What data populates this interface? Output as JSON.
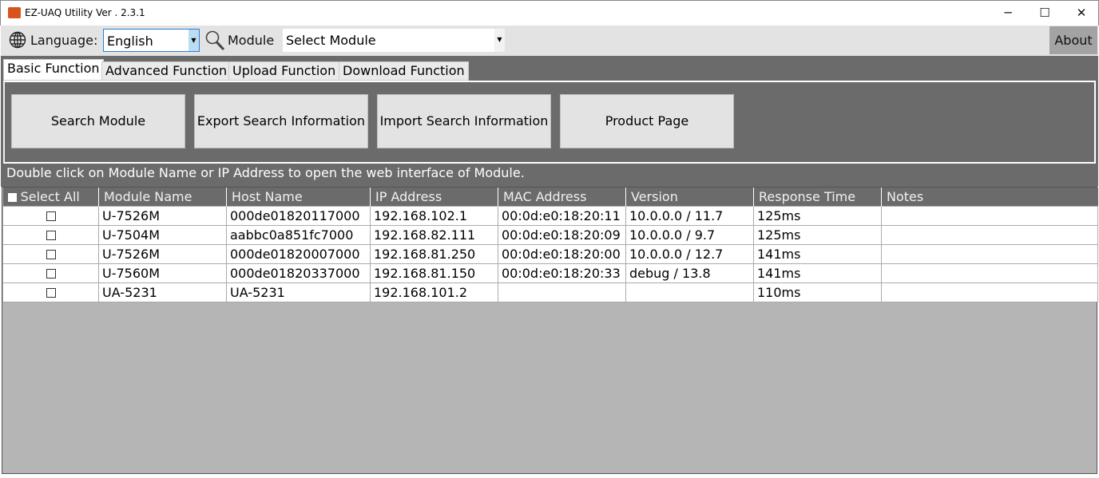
{
  "window": {
    "title": "EZ-UAQ Utility Ver . 2.3.1",
    "minimize": "─",
    "maximize": "☐",
    "close": "✕"
  },
  "toolbar": {
    "language_label": "Language:",
    "language_value": "English",
    "module_label": "Module",
    "module_value": "Select Module",
    "about": "About"
  },
  "tabs": [
    {
      "label": "Basic Function",
      "active": true
    },
    {
      "label": "Advanced Function"
    },
    {
      "label": "Upload Function"
    },
    {
      "label": "Download Function"
    }
  ],
  "buttons": [
    "Search Module",
    "Export Search Information",
    "Import Search Information",
    "Product Page"
  ],
  "hint": "Double click on Module Name or IP Address to open the web interface of Module.",
  "table": {
    "headers": [
      "Select All",
      "Module Name",
      "Host Name",
      "IP Address",
      "MAC Address",
      "Version",
      "Response Time",
      "Notes"
    ],
    "rows": [
      [
        "U-7526M",
        "000de01820117000",
        "192.168.102.1",
        "00:0d:e0:18:20:11",
        "10.0.0.0 / 11.7",
        "125ms",
        ""
      ],
      [
        "U-7504M",
        "aabbc0a851fc7000",
        "192.168.82.111",
        "00:0d:e0:18:20:09",
        "10.0.0.0 / 9.7",
        "125ms",
        ""
      ],
      [
        "U-7526M",
        "000de01820007000",
        "192.168.81.250",
        "00:0d:e0:18:20:00",
        "10.0.0.0 / 12.7",
        "141ms",
        ""
      ],
      [
        "U-7560M",
        "000de01820337000",
        "192.168.81.150",
        "00:0d:e0:18:20:33",
        "debug / 13.8",
        "141ms",
        ""
      ],
      [
        "UA-5231",
        "UA-5231",
        "192.168.101.2",
        "",
        "",
        "110ms",
        ""
      ]
    ]
  }
}
